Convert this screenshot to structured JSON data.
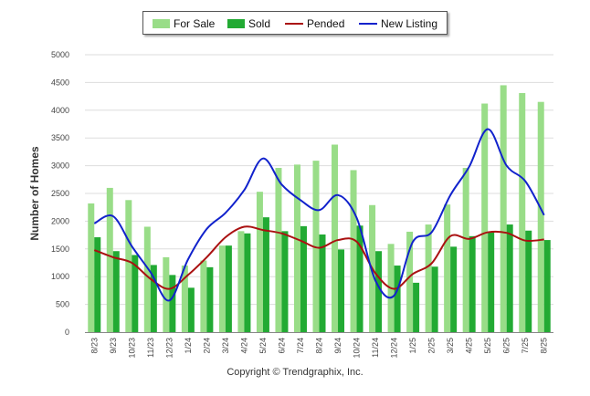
{
  "chart_data": {
    "type": "bar",
    "title": "",
    "xlabel": "",
    "ylabel": "Number of Homes",
    "ylim": [
      0,
      5000
    ],
    "yticks": [
      0,
      500,
      1000,
      1500,
      2000,
      2500,
      3000,
      3500,
      4000,
      4500,
      5000
    ],
    "grid": true,
    "legend_position": "top-center",
    "categories": [
      "8/23",
      "9/23",
      "10/23",
      "11/23",
      "12/23",
      "1/24",
      "2/24",
      "3/24",
      "4/24",
      "5/24",
      "6/24",
      "7/24",
      "8/24",
      "9/24",
      "10/24",
      "11/24",
      "12/24",
      "1/25",
      "2/25",
      "3/25",
      "4/25",
      "5/25",
      "6/25",
      "7/25",
      "8/25"
    ],
    "series": [
      {
        "name": "For Sale",
        "kind": "bar",
        "color": "#99dd88",
        "values": [
          2320,
          2600,
          2380,
          1900,
          1350,
          1200,
          1290,
          1560,
          1820,
          2530,
          2960,
          3020,
          3090,
          3380,
          2920,
          2290,
          1590,
          1810,
          1940,
          2300,
          2960,
          4120,
          4450,
          4310,
          4150
        ]
      },
      {
        "name": "Sold",
        "kind": "bar",
        "color": "#22aa33",
        "values": [
          1710,
          1460,
          1390,
          1210,
          1030,
          800,
          1170,
          1560,
          1780,
          2070,
          1820,
          1910,
          1760,
          1490,
          1920,
          1460,
          1200,
          890,
          1180,
          1540,
          1730,
          1800,
          1940,
          1830,
          1660
        ]
      },
      {
        "name": "Pended",
        "kind": "line",
        "color": "#aa1111",
        "values": [
          1480,
          1350,
          1250,
          960,
          780,
          1030,
          1350,
          1710,
          1900,
          1840,
          1780,
          1650,
          1520,
          1660,
          1630,
          1060,
          780,
          1050,
          1240,
          1730,
          1680,
          1800,
          1790,
          1650,
          1670
        ]
      },
      {
        "name": "New Listing",
        "kind": "line",
        "color": "#1122cc",
        "values": [
          1960,
          2090,
          1550,
          1080,
          570,
          1310,
          1860,
          2150,
          2560,
          3130,
          2660,
          2380,
          2200,
          2470,
          2060,
          930,
          660,
          1630,
          1800,
          2470,
          2980,
          3660,
          3000,
          2720,
          2110
        ]
      }
    ]
  },
  "footer": {
    "copyright": "Copyright © Trendgraphix, Inc."
  }
}
